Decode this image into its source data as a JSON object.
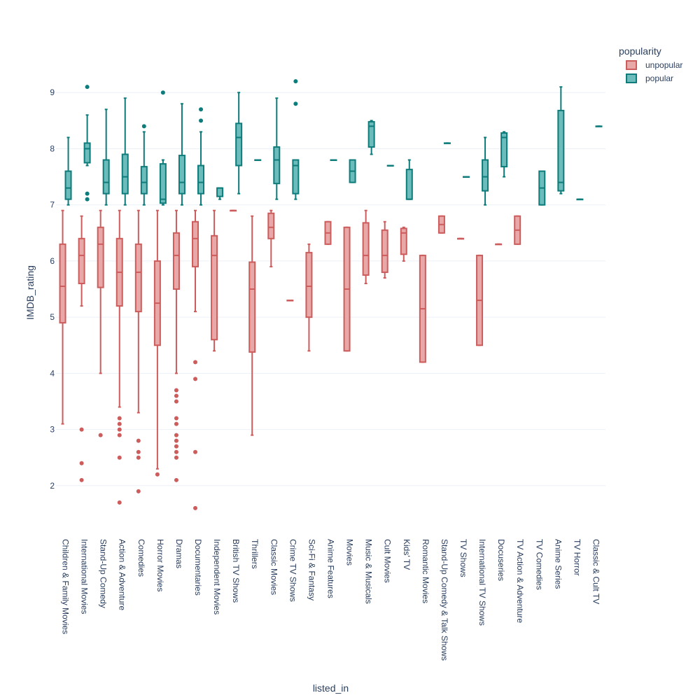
{
  "chart_data": {
    "type": "box",
    "xlabel": "listed_in",
    "ylabel": "IMDB_rating",
    "ylim": [
      1.3,
      9.9
    ],
    "y_ticks": [
      2,
      3,
      4,
      5,
      6,
      7,
      8,
      9
    ],
    "grid": true,
    "legend_placement": "top-right",
    "legend_title": "popularity",
    "categories": [
      "Children & Family Movies",
      "International Movies",
      "Stand-Up Comedy",
      "Action & Adventure",
      "Comedies",
      "Horror Movies",
      "Dramas",
      "Documentaries",
      "Independent Movies",
      "British TV Shows",
      "Thrillers",
      "Classic Movies",
      "Crime TV Shows",
      "Sci-Fi & Fantasy",
      "Anime Features",
      "Movies",
      "Music & Musicals",
      "Cult Movies",
      "Kids' TV",
      "Romantic Movies",
      "Stand-Up Comedy & Talk Shows",
      "TV Shows",
      "International TV Shows",
      "Docuseries",
      "TV Action & Adventure",
      "TV Comedies",
      "Anime Series",
      "TV Horror",
      "Classic & Cult TV"
    ],
    "series": [
      {
        "name": "unpopular",
        "color": "#cd5c5c",
        "fill": "#e8a8a8",
        "boxes": [
          {
            "cat": "Children & Family Movies",
            "min": 3.1,
            "q1": 4.9,
            "median": 5.55,
            "q3": 6.3,
            "max": 6.9,
            "outliers": []
          },
          {
            "cat": "International Movies",
            "min": 5.2,
            "q1": 5.6,
            "median": 6.1,
            "q3": 6.4,
            "max": 6.8,
            "outliers": [
              3.0,
              2.4,
              2.1
            ]
          },
          {
            "cat": "Stand-Up Comedy",
            "min": 4.0,
            "q1": 5.53,
            "median": 6.3,
            "q3": 6.6,
            "max": 6.9,
            "outliers": [
              2.9
            ]
          },
          {
            "cat": "Action & Adventure",
            "min": 3.4,
            "q1": 5.2,
            "median": 5.8,
            "q3": 6.4,
            "max": 6.9,
            "outliers": [
              3.2,
              3.1,
              3.0,
              2.9,
              2.5,
              1.7
            ]
          },
          {
            "cat": "Comedies",
            "min": 3.3,
            "q1": 5.1,
            "median": 5.8,
            "q3": 6.3,
            "max": 6.9,
            "outliers": [
              2.8,
              2.6,
              2.5,
              1.9
            ]
          },
          {
            "cat": "Horror Movies",
            "min": 2.3,
            "q1": 4.5,
            "median": 5.25,
            "q3": 6.0,
            "max": 6.9,
            "outliers": [
              2.2
            ]
          },
          {
            "cat": "Dramas",
            "min": 4.0,
            "q1": 5.5,
            "median": 6.1,
            "q3": 6.5,
            "max": 6.9,
            "outliers": [
              3.7,
              3.6,
              3.5,
              3.2,
              3.1,
              2.9,
              2.8,
              2.7,
              2.6,
              2.5,
              2.1
            ]
          },
          {
            "cat": "Documentaries",
            "min": 5.1,
            "q1": 5.9,
            "median": 6.4,
            "q3": 6.7,
            "max": 6.9,
            "outliers": [
              4.2,
              3.9,
              2.6,
              1.6
            ]
          },
          {
            "cat": "Independent Movies",
            "min": 4.4,
            "q1": 4.6,
            "median": 6.1,
            "q3": 6.45,
            "max": 6.9,
            "outliers": []
          },
          {
            "cat": "British TV Shows",
            "min": 6.9,
            "q1": 6.9,
            "median": 6.9,
            "q3": 6.9,
            "max": 6.9,
            "outliers": []
          },
          {
            "cat": "Thrillers",
            "min": 2.9,
            "q1": 4.38,
            "median": 5.5,
            "q3": 5.98,
            "max": 6.8,
            "outliers": []
          },
          {
            "cat": "Classic Movies",
            "min": 5.9,
            "q1": 6.4,
            "median": 6.6,
            "q3": 6.85,
            "max": 6.9,
            "outliers": []
          },
          {
            "cat": "Crime TV Shows",
            "min": 5.3,
            "q1": 5.3,
            "median": 5.3,
            "q3": 5.3,
            "max": 5.3,
            "outliers": []
          },
          {
            "cat": "Sci-Fi & Fantasy",
            "min": 4.4,
            "q1": 5.0,
            "median": 5.55,
            "q3": 6.15,
            "max": 6.3,
            "outliers": []
          },
          {
            "cat": "Anime Features",
            "min": 6.3,
            "q1": 6.3,
            "median": 6.5,
            "q3": 6.7,
            "max": 6.7,
            "outliers": []
          },
          {
            "cat": "Movies",
            "min": 4.4,
            "q1": 4.4,
            "median": 5.5,
            "q3": 6.6,
            "max": 6.6,
            "outliers": []
          },
          {
            "cat": "Music & Musicals",
            "min": 5.6,
            "q1": 5.75,
            "median": 6.1,
            "q3": 6.68,
            "max": 6.9,
            "outliers": []
          },
          {
            "cat": "Cult Movies",
            "min": 5.7,
            "q1": 5.8,
            "median": 6.1,
            "q3": 6.55,
            "max": 6.7,
            "outliers": []
          },
          {
            "cat": "Kids' TV",
            "min": 6.0,
            "q1": 6.12,
            "median": 6.5,
            "q3": 6.58,
            "max": 6.6,
            "outliers": []
          },
          {
            "cat": "Romantic Movies",
            "min": 4.2,
            "q1": 4.2,
            "median": 5.15,
            "q3": 6.1,
            "max": 6.1,
            "outliers": []
          },
          {
            "cat": "Stand-Up Comedy & Talk Shows",
            "min": 6.5,
            "q1": 6.5,
            "median": 6.65,
            "q3": 6.8,
            "max": 6.8,
            "outliers": []
          },
          {
            "cat": "TV Shows",
            "min": 6.4,
            "q1": 6.4,
            "median": 6.4,
            "q3": 6.4,
            "max": 6.4,
            "outliers": []
          },
          {
            "cat": "International TV Shows",
            "min": 4.5,
            "q1": 4.5,
            "median": 5.3,
            "q3": 6.1,
            "max": 6.1,
            "outliers": []
          },
          {
            "cat": "Docuseries",
            "min": 6.3,
            "q1": 6.3,
            "median": 6.3,
            "q3": 6.3,
            "max": 6.3,
            "outliers": []
          },
          {
            "cat": "TV Action & Adventure",
            "min": 6.3,
            "q1": 6.3,
            "median": 6.55,
            "q3": 6.8,
            "max": 6.8,
            "outliers": []
          }
        ]
      },
      {
        "name": "popular",
        "color": "#0e7c7b",
        "fill": "#6bbcba",
        "boxes": [
          {
            "cat": "Children & Family Movies",
            "min": 7.0,
            "q1": 7.1,
            "median": 7.3,
            "q3": 7.6,
            "max": 8.2,
            "outliers": []
          },
          {
            "cat": "International Movies",
            "min": 7.7,
            "q1": 7.75,
            "median": 8.0,
            "q3": 8.1,
            "max": 8.6,
            "outliers": [
              9.1,
              7.2,
              7.1
            ]
          },
          {
            "cat": "Stand-Up Comedy",
            "min": 7.0,
            "q1": 7.2,
            "median": 7.4,
            "q3": 7.8,
            "max": 8.7,
            "outliers": []
          },
          {
            "cat": "Action & Adventure",
            "min": 7.0,
            "q1": 7.2,
            "median": 7.5,
            "q3": 7.9,
            "max": 8.9,
            "outliers": []
          },
          {
            "cat": "Comedies",
            "min": 7.0,
            "q1": 7.2,
            "median": 7.4,
            "q3": 7.68,
            "max": 8.3,
            "outliers": [
              8.4
            ]
          },
          {
            "cat": "Horror Movies",
            "min": 7.0,
            "q1": 7.03,
            "median": 7.1,
            "q3": 7.73,
            "max": 7.8,
            "outliers": [
              9.0
            ]
          },
          {
            "cat": "Dramas",
            "min": 7.0,
            "q1": 7.2,
            "median": 7.4,
            "q3": 7.88,
            "max": 8.8,
            "outliers": []
          },
          {
            "cat": "Documentaries",
            "min": 7.0,
            "q1": 7.2,
            "median": 7.4,
            "q3": 7.7,
            "max": 8.3,
            "outliers": [
              8.7,
              8.5
            ]
          },
          {
            "cat": "Independent Movies",
            "min": 7.1,
            "q1": 7.15,
            "median": 7.3,
            "q3": 7.3,
            "max": 7.3,
            "outliers": []
          },
          {
            "cat": "British TV Shows",
            "min": 7.2,
            "q1": 7.7,
            "median": 8.2,
            "q3": 8.45,
            "max": 9.0,
            "outliers": []
          },
          {
            "cat": "Thrillers",
            "min": 7.8,
            "q1": 7.8,
            "median": 7.8,
            "q3": 7.8,
            "max": 7.8,
            "outliers": []
          },
          {
            "cat": "Classic Movies",
            "min": 7.1,
            "q1": 7.38,
            "median": 7.8,
            "q3": 8.03,
            "max": 8.9,
            "outliers": []
          },
          {
            "cat": "Crime TV Shows",
            "min": 7.1,
            "q1": 7.2,
            "median": 7.7,
            "q3": 7.8,
            "max": 7.8,
            "outliers": [
              9.2,
              8.8
            ]
          },
          {
            "cat": "Anime Features",
            "min": 7.8,
            "q1": 7.8,
            "median": 7.8,
            "q3": 7.8,
            "max": 7.8,
            "outliers": []
          },
          {
            "cat": "Movies",
            "min": 7.4,
            "q1": 7.4,
            "median": 7.6,
            "q3": 7.8,
            "max": 7.8,
            "outliers": []
          },
          {
            "cat": "Music & Musicals",
            "min": 7.9,
            "q1": 8.03,
            "median": 8.4,
            "q3": 8.48,
            "max": 8.5,
            "outliers": []
          },
          {
            "cat": "Cult Movies",
            "min": 7.7,
            "q1": 7.7,
            "median": 7.7,
            "q3": 7.7,
            "max": 7.7,
            "outliers": []
          },
          {
            "cat": "Kids' TV",
            "min": 7.1,
            "q1": 7.1,
            "median": 7.1,
            "q3": 7.63,
            "max": 7.8,
            "outliers": []
          },
          {
            "cat": "Stand-Up Comedy & Talk Shows",
            "min": 8.1,
            "q1": 8.1,
            "median": 8.1,
            "q3": 8.1,
            "max": 8.1,
            "outliers": []
          },
          {
            "cat": "TV Shows",
            "min": 7.5,
            "q1": 7.5,
            "median": 7.5,
            "q3": 7.5,
            "max": 7.5,
            "outliers": []
          },
          {
            "cat": "International TV Shows",
            "min": 7.0,
            "q1": 7.25,
            "median": 7.5,
            "q3": 7.8,
            "max": 8.2,
            "outliers": []
          },
          {
            "cat": "Docuseries",
            "min": 7.5,
            "q1": 7.68,
            "median": 8.2,
            "q3": 8.28,
            "max": 8.3,
            "outliers": []
          },
          {
            "cat": "TV Comedies",
            "min": 7.0,
            "q1": 7.0,
            "median": 7.3,
            "q3": 7.6,
            "max": 7.6,
            "outliers": []
          },
          {
            "cat": "Anime Series",
            "min": 7.2,
            "q1": 7.25,
            "median": 7.4,
            "q3": 8.68,
            "max": 9.1,
            "outliers": []
          },
          {
            "cat": "TV Horror",
            "min": 7.1,
            "q1": 7.1,
            "median": 7.1,
            "q3": 7.1,
            "max": 7.1,
            "outliers": []
          },
          {
            "cat": "Classic & Cult TV",
            "min": 8.4,
            "q1": 8.4,
            "median": 8.4,
            "q3": 8.4,
            "max": 8.4,
            "outliers": []
          }
        ]
      }
    ]
  }
}
